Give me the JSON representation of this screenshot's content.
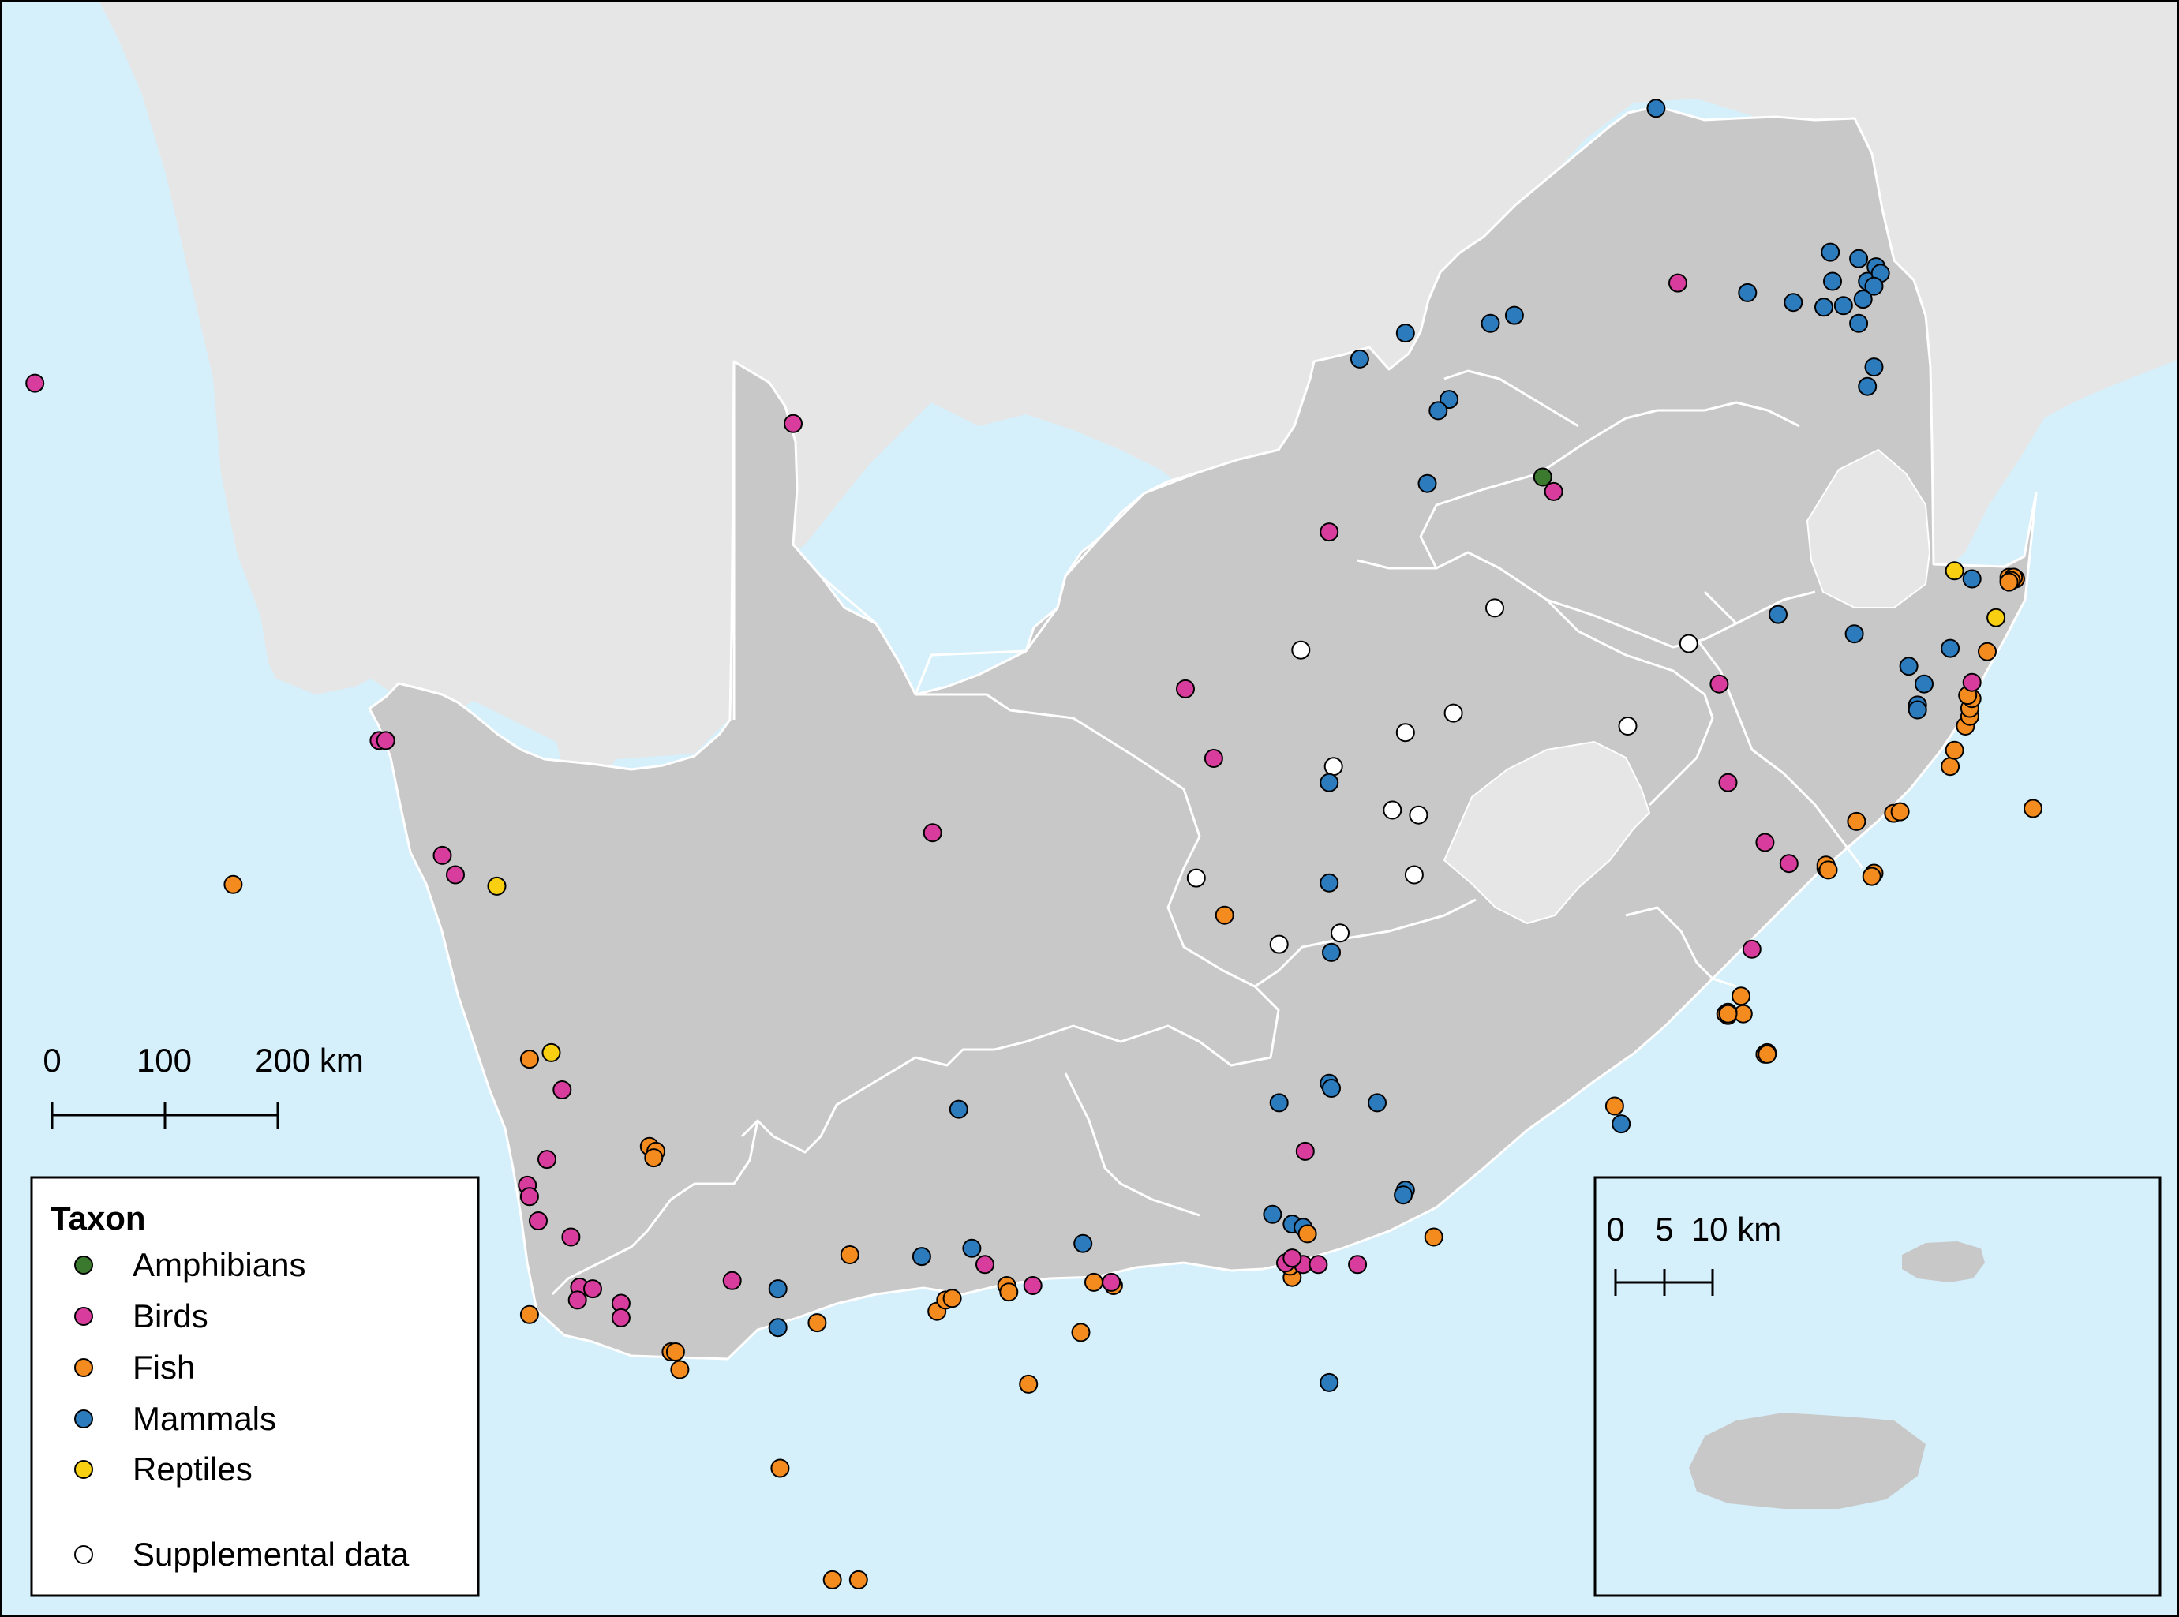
{
  "colors": {
    "ocean": "#d5f0fb",
    "neighbor_land": "#e6e6e6",
    "south_africa": "#c8c8c8",
    "province_border": "#ffffff",
    "frame": "#000000",
    "amphibians": "#3b7a2e",
    "birds": "#d83d9d",
    "fish": "#f48b1f",
    "mammals": "#2b7bbd",
    "reptiles": "#f9cf12",
    "supplemental": "#ffffff"
  },
  "scale_bar_main": {
    "ticks": [
      "0",
      "100",
      "200 km"
    ]
  },
  "scale_bar_inset": {
    "ticks": [
      "0",
      "5",
      "10 km"
    ]
  },
  "legend": {
    "title": "Taxon",
    "items": [
      {
        "key": "amphibians",
        "label": "Amphibians"
      },
      {
        "key": "birds",
        "label": "Birds"
      },
      {
        "key": "fish",
        "label": "Fish"
      },
      {
        "key": "mammals",
        "label": "Mammals"
      },
      {
        "key": "reptiles",
        "label": "Reptiles"
      }
    ],
    "supplemental_label": "Supplemental data"
  },
  "occurrence_points": {
    "note_units": "fraction",
    "amphibians": [
      [
        0.708,
        0.295
      ]
    ],
    "birds": [
      [
        0.016,
        0.237
      ],
      [
        0.364,
        0.262
      ],
      [
        0.174,
        0.458
      ],
      [
        0.177,
        0.458
      ],
      [
        0.203,
        0.529
      ],
      [
        0.209,
        0.541
      ],
      [
        0.258,
        0.674
      ],
      [
        0.251,
        0.717
      ],
      [
        0.242,
        0.733
      ],
      [
        0.243,
        0.74
      ],
      [
        0.247,
        0.755
      ],
      [
        0.262,
        0.765
      ],
      [
        0.266,
        0.796
      ],
      [
        0.272,
        0.797
      ],
      [
        0.265,
        0.804
      ],
      [
        0.285,
        0.806
      ],
      [
        0.285,
        0.815
      ],
      [
        0.336,
        0.792
      ],
      [
        0.428,
        0.515
      ],
      [
        0.544,
        0.426
      ],
      [
        0.557,
        0.469
      ],
      [
        0.61,
        0.329
      ],
      [
        0.713,
        0.304
      ],
      [
        0.77,
        0.175
      ],
      [
        0.59,
        0.781
      ],
      [
        0.598,
        0.782
      ],
      [
        0.605,
        0.782
      ],
      [
        0.593,
        0.778
      ],
      [
        0.623,
        0.782
      ],
      [
        0.599,
        0.712
      ],
      [
        0.452,
        0.782
      ],
      [
        0.474,
        0.795
      ],
      [
        0.51,
        0.793
      ],
      [
        0.789,
        0.423
      ],
      [
        0.793,
        0.484
      ],
      [
        0.81,
        0.521
      ],
      [
        0.821,
        0.534
      ],
      [
        0.804,
        0.587
      ],
      [
        0.904,
        0.787
      ],
      [
        0.904,
        0.793
      ],
      [
        0.832,
        0.914
      ],
      [
        0.835,
        0.91
      ],
      [
        0.839,
        0.907
      ],
      [
        0.837,
        0.917
      ],
      [
        0.905,
        0.422
      ]
    ],
    "fish": [
      [
        0.107,
        0.547
      ],
      [
        0.243,
        0.655
      ],
      [
        0.243,
        0.813
      ],
      [
        0.298,
        0.709
      ],
      [
        0.301,
        0.712
      ],
      [
        0.3,
        0.716
      ],
      [
        0.308,
        0.836
      ],
      [
        0.31,
        0.836
      ],
      [
        0.312,
        0.847
      ],
      [
        0.358,
        0.908
      ],
      [
        0.382,
        0.977
      ],
      [
        0.394,
        0.977
      ],
      [
        0.39,
        0.776
      ],
      [
        0.375,
        0.818
      ],
      [
        0.43,
        0.811
      ],
      [
        0.434,
        0.804
      ],
      [
        0.437,
        0.803
      ],
      [
        0.462,
        0.795
      ],
      [
        0.463,
        0.799
      ],
      [
        0.472,
        0.856
      ],
      [
        0.496,
        0.824
      ],
      [
        0.502,
        0.793
      ],
      [
        0.511,
        0.795
      ],
      [
        0.562,
        0.566
      ],
      [
        0.6,
        0.763
      ],
      [
        0.593,
        0.79
      ],
      [
        0.592,
        0.783
      ],
      [
        0.658,
        0.765
      ],
      [
        0.741,
        0.684
      ],
      [
        0.793,
        0.628
      ],
      [
        0.8,
        0.627
      ],
      [
        0.81,
        0.652
      ],
      [
        0.838,
        0.537
      ],
      [
        0.838,
        0.535
      ],
      [
        0.852,
        0.508
      ],
      [
        0.86,
        0.54
      ],
      [
        0.869,
        0.503
      ],
      [
        0.872,
        0.502
      ],
      [
        0.859,
        0.542
      ],
      [
        0.895,
        0.474
      ],
      [
        0.897,
        0.464
      ],
      [
        0.902,
        0.449
      ],
      [
        0.904,
        0.443
      ],
      [
        0.904,
        0.438
      ],
      [
        0.905,
        0.432
      ],
      [
        0.903,
        0.43
      ],
      [
        0.912,
        0.403
      ],
      [
        0.922,
        0.359
      ],
      [
        0.924,
        0.357
      ],
      [
        0.933,
        0.5
      ],
      [
        0.792,
        0.627
      ],
      [
        0.799,
        0.616
      ],
      [
        0.793,
        0.626
      ],
      [
        0.793,
        0.627
      ],
      [
        0.839,
        0.538
      ],
      [
        0.811,
        0.651
      ],
      [
        0.876,
        0.848
      ],
      [
        0.922,
        0.357
      ],
      [
        0.925,
        0.358
      ],
      [
        0.924,
        0.357
      ],
      [
        0.923,
        0.359
      ],
      [
        0.922,
        0.36
      ],
      [
        0.874,
        0.848
      ],
      [
        0.811,
        0.652
      ]
    ],
    "mammals": [
      [
        0.76,
        0.067
      ],
      [
        0.84,
        0.156
      ],
      [
        0.853,
        0.16
      ],
      [
        0.861,
        0.165
      ],
      [
        0.841,
        0.174
      ],
      [
        0.857,
        0.174
      ],
      [
        0.863,
        0.169
      ],
      [
        0.86,
        0.177
      ],
      [
        0.855,
        0.185
      ],
      [
        0.846,
        0.189
      ],
      [
        0.837,
        0.19
      ],
      [
        0.823,
        0.187
      ],
      [
        0.802,
        0.181
      ],
      [
        0.695,
        0.195
      ],
      [
        0.684,
        0.2
      ],
      [
        0.645,
        0.206
      ],
      [
        0.624,
        0.222
      ],
      [
        0.665,
        0.247
      ],
      [
        0.66,
        0.254
      ],
      [
        0.655,
        0.299
      ],
      [
        0.853,
        0.2
      ],
      [
        0.86,
        0.227
      ],
      [
        0.857,
        0.239
      ],
      [
        0.816,
        0.38
      ],
      [
        0.851,
        0.392
      ],
      [
        0.876,
        0.412
      ],
      [
        0.883,
        0.423
      ],
      [
        0.88,
        0.436
      ],
      [
        0.88,
        0.439
      ],
      [
        0.895,
        0.401
      ],
      [
        0.905,
        0.358
      ],
      [
        0.61,
        0.484
      ],
      [
        0.61,
        0.546
      ],
      [
        0.611,
        0.589
      ],
      [
        0.61,
        0.67
      ],
      [
        0.611,
        0.673
      ],
      [
        0.587,
        0.682
      ],
      [
        0.632,
        0.682
      ],
      [
        0.645,
        0.736
      ],
      [
        0.644,
        0.739
      ],
      [
        0.584,
        0.751
      ],
      [
        0.593,
        0.757
      ],
      [
        0.598,
        0.759
      ],
      [
        0.44,
        0.686
      ],
      [
        0.357,
        0.797
      ],
      [
        0.357,
        0.821
      ],
      [
        0.423,
        0.777
      ],
      [
        0.446,
        0.772
      ],
      [
        0.497,
        0.769
      ],
      [
        0.61,
        0.855
      ],
      [
        0.744,
        0.695
      ],
      [
        0.816,
        0.911
      ]
    ],
    "reptiles": [
      [
        0.228,
        0.548
      ],
      [
        0.253,
        0.651
      ],
      [
        0.897,
        0.353
      ],
      [
        0.916,
        0.382
      ]
    ],
    "supplemental": [
      [
        0.686,
        0.376
      ],
      [
        0.597,
        0.402
      ],
      [
        0.775,
        0.398
      ],
      [
        0.667,
        0.441
      ],
      [
        0.645,
        0.453
      ],
      [
        0.747,
        0.449
      ],
      [
        0.612,
        0.474
      ],
      [
        0.639,
        0.501
      ],
      [
        0.651,
        0.504
      ],
      [
        0.549,
        0.543
      ],
      [
        0.649,
        0.541
      ],
      [
        0.615,
        0.577
      ],
      [
        0.587,
        0.584
      ]
    ]
  }
}
